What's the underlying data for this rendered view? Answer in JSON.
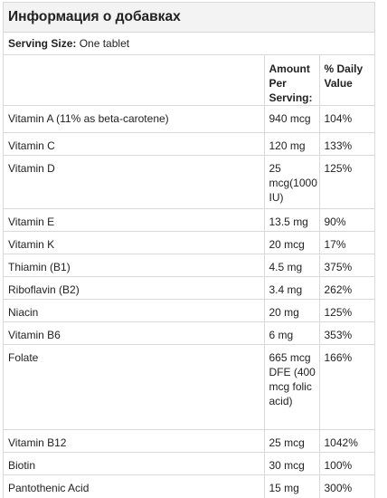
{
  "title": "Информация о добавках",
  "serving": {
    "label": "Serving Size:",
    "value": "One tablet"
  },
  "columns": {
    "nutrient": "",
    "amount": "Amount Per Serving:",
    "dv": "% Daily Value"
  },
  "rows": [
    {
      "name": "Vitamin A (11% as beta-carotene)",
      "amount": "940 mcg",
      "dv": "104%"
    },
    {
      "name": "Vitamin C",
      "amount": "120 mg",
      "dv": "133%"
    },
    {
      "name": "Vitamin D",
      "amount": "25 mcg(1000 IU)",
      "dv": "125%"
    },
    {
      "name": "Vitamin E",
      "amount": "13.5 mg",
      "dv": "90%"
    },
    {
      "name": "Vitamin K",
      "amount": "20 mcg",
      "dv": "17%"
    },
    {
      "name": "Thiamin (B1)",
      "amount": "4.5 mg",
      "dv": "375%"
    },
    {
      "name": "Riboflavin (B2)",
      "amount": "3.4 mg",
      "dv": "262%"
    },
    {
      "name": "Niacin",
      "amount": "20 mg",
      "dv": "125%"
    },
    {
      "name": "Vitamin B6",
      "amount": "6 mg",
      "dv": "353%"
    },
    {
      "name": "Folate",
      "amount": "665 mcg DFE (400 mcg folic acid)",
      "dv": "166%"
    },
    {
      "name": "Vitamin B12",
      "amount": "25 mcg",
      "dv": "1042%"
    },
    {
      "name": "Biotin",
      "amount": "30 mcg",
      "dv": "100%"
    },
    {
      "name": "Pantothenic Acid",
      "amount": "15 mg",
      "dv": "300%"
    }
  ]
}
